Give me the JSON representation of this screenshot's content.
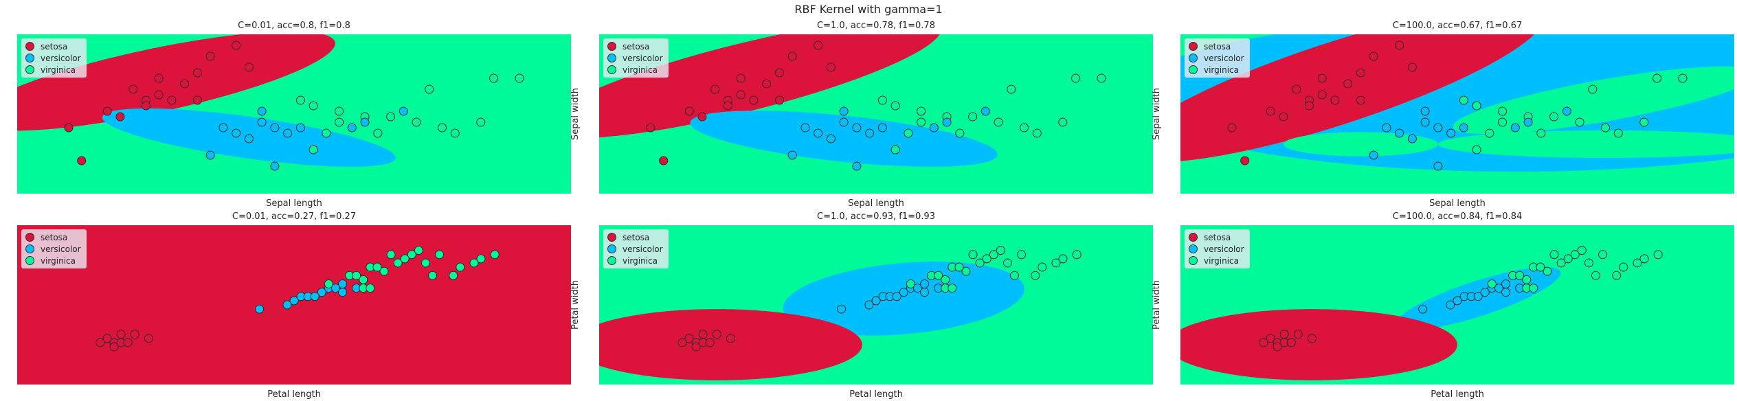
{
  "suptitle": "RBF Kernel with gamma=1",
  "colors": {
    "setosa": "#dc143c",
    "versicolor": "#00bfff",
    "virginica": "#00fa9a"
  },
  "legend": [
    "setosa",
    "versicolor",
    "virginica"
  ],
  "chart_data": [
    {
      "type": "scatter",
      "title": "C=0.01, acc=0.8, f1=0.8",
      "xlabel": "Sepal length",
      "ylabel": "Sepal width",
      "xlim": [
        4.0,
        8.3
      ],
      "ylim": [
        1.7,
        4.6
      ],
      "grid": false,
      "legend": "top-left",
      "regions": [
        {
          "class": "setosa",
          "cx": 5.05,
          "cy": 3.75,
          "rx": 1.45,
          "ry": 0.58,
          "rot": -12
        },
        {
          "class": "versicolor",
          "cx": 5.8,
          "cy": 2.72,
          "rx": 1.15,
          "ry": 0.38,
          "rot": 8
        }
      ],
      "points": {
        "x": [
          4.5,
          4.8,
          4.9,
          5.0,
          5.1,
          5.2,
          5.3,
          5.4,
          5.5,
          5.6,
          5.7,
          5.8,
          5.9,
          6.0,
          6.1,
          6.2,
          6.3,
          6.4,
          6.5,
          6.6,
          6.7,
          6.8,
          6.9,
          7.0,
          7.1,
          7.2,
          7.7,
          7.9,
          4.4,
          4.7,
          5.0,
          5.1,
          5.4,
          5.7,
          5.8,
          6.0,
          6.3,
          6.7,
          5.5,
          5.9,
          6.2,
          6.5,
          7.6,
          7.4,
          7.3
        ],
        "y": [
          2.3,
          3.1,
          3.6,
          3.4,
          3.5,
          3.4,
          3.7,
          3.9,
          4.2,
          2.9,
          2.8,
          2.7,
          3.0,
          2.2,
          2.8,
          2.9,
          3.3,
          2.8,
          3.0,
          2.9,
          3.1,
          2.8,
          3.1,
          3.2,
          3.0,
          3.6,
          3.8,
          3.8,
          2.9,
          3.2,
          3.3,
          3.8,
          3.4,
          4.4,
          4.0,
          2.9,
          2.5,
          3.0,
          2.4,
          3.2,
          3.4,
          3.2,
          3.0,
          2.8,
          2.9
        ],
        "cls": [
          0,
          0,
          0,
          0,
          0,
          0,
          0,
          0,
          0,
          1,
          1,
          1,
          1,
          1,
          1,
          1,
          2,
          2,
          2,
          1,
          2,
          2,
          2,
          1,
          2,
          2,
          2,
          2,
          0,
          0,
          0,
          0,
          0,
          0,
          0,
          1,
          2,
          1,
          1,
          1,
          2,
          2,
          2,
          2,
          2
        ]
      }
    },
    {
      "type": "scatter",
      "title": "C=1.0, acc=0.78, f1=0.78",
      "xlabel": "Sepal length",
      "ylabel": "Sepal width",
      "xlim": [
        4.0,
        8.3
      ],
      "ylim": [
        1.7,
        4.6
      ],
      "grid": false,
      "legend": "top-left",
      "regions": [
        {
          "class": "setosa",
          "cx": 5.1,
          "cy": 3.8,
          "rx": 1.6,
          "ry": 0.62,
          "rot": -14
        },
        {
          "class": "versicolor",
          "cx": 5.9,
          "cy": 2.7,
          "rx": 1.2,
          "ry": 0.42,
          "rot": 6
        }
      ],
      "points": {
        "x": [
          4.5,
          4.8,
          4.9,
          5.0,
          5.1,
          5.2,
          5.3,
          5.4,
          5.5,
          5.6,
          5.7,
          5.8,
          5.9,
          6.0,
          6.1,
          6.2,
          6.3,
          6.4,
          6.5,
          6.6,
          6.7,
          6.8,
          6.9,
          7.0,
          7.1,
          7.2,
          7.7,
          7.9,
          4.4,
          4.7,
          5.0,
          5.1,
          5.4,
          5.7,
          5.8,
          6.0,
          6.3,
          6.7,
          5.5,
          5.9,
          6.2,
          6.5,
          7.6,
          7.4,
          7.3
        ],
        "y": [
          2.3,
          3.1,
          3.6,
          3.4,
          3.5,
          3.4,
          3.7,
          3.9,
          4.2,
          2.9,
          2.8,
          2.7,
          3.0,
          2.2,
          2.8,
          2.9,
          3.3,
          2.8,
          3.0,
          2.9,
          3.1,
          2.8,
          3.1,
          3.2,
          3.0,
          3.6,
          3.8,
          3.8,
          2.9,
          3.2,
          3.3,
          3.8,
          3.4,
          4.4,
          4.0,
          2.9,
          2.5,
          3.0,
          2.4,
          3.2,
          3.4,
          3.2,
          3.0,
          2.8,
          2.9
        ],
        "cls": [
          0,
          0,
          0,
          0,
          0,
          0,
          0,
          0,
          0,
          1,
          1,
          1,
          1,
          1,
          1,
          1,
          2,
          2,
          2,
          1,
          2,
          2,
          2,
          1,
          2,
          2,
          2,
          2,
          0,
          0,
          0,
          0,
          0,
          0,
          0,
          1,
          2,
          1,
          1,
          1,
          2,
          2,
          2,
          2,
          2
        ]
      }
    },
    {
      "type": "scatter",
      "title": "C=100.0, acc=0.67, f1=0.67",
      "xlabel": "Sepal length",
      "ylabel": "Sepal width",
      "xlim": [
        4.0,
        8.3
      ],
      "ylim": [
        1.7,
        4.6
      ],
      "grid": false,
      "legend": "top-left",
      "regions": [
        {
          "class": "versicolor",
          "cx": 6.6,
          "cy": 3.5,
          "rx": 3.0,
          "ry": 1.4,
          "rot": 0
        },
        {
          "class": "setosa",
          "cx": 5.2,
          "cy": 3.7,
          "rx": 1.7,
          "ry": 0.75,
          "rot": -18
        },
        {
          "class": "virginica",
          "cx": 7.3,
          "cy": 3.4,
          "rx": 1.2,
          "ry": 0.38,
          "rot": -10
        },
        {
          "class": "virginica",
          "cx": 7.3,
          "cy": 2.6,
          "rx": 1.3,
          "ry": 0.25,
          "rot": 0
        },
        {
          "class": "virginica",
          "cx": 5.4,
          "cy": 2.6,
          "rx": 0.6,
          "ry": 0.22,
          "rot": 0
        }
      ],
      "points": {
        "x": [
          4.5,
          4.8,
          4.9,
          5.0,
          5.1,
          5.2,
          5.3,
          5.4,
          5.5,
          5.6,
          5.7,
          5.8,
          5.9,
          6.0,
          6.1,
          6.2,
          6.3,
          6.4,
          6.5,
          6.6,
          6.7,
          6.8,
          6.9,
          7.0,
          7.1,
          7.2,
          7.7,
          7.9,
          4.4,
          4.7,
          5.0,
          5.1,
          5.4,
          5.7,
          5.8,
          6.0,
          6.3,
          6.7,
          5.5,
          5.9,
          6.2,
          6.5,
          7.6,
          7.4,
          7.3
        ],
        "y": [
          2.3,
          3.1,
          3.6,
          3.4,
          3.5,
          3.4,
          3.7,
          3.9,
          4.2,
          2.9,
          2.8,
          2.7,
          3.0,
          2.2,
          2.8,
          2.9,
          3.3,
          2.8,
          3.0,
          2.9,
          3.1,
          2.8,
          3.1,
          3.2,
          3.0,
          3.6,
          3.8,
          3.8,
          2.9,
          3.2,
          3.3,
          3.8,
          3.4,
          4.4,
          4.0,
          2.9,
          2.5,
          3.0,
          2.4,
          3.2,
          3.4,
          3.2,
          3.0,
          2.8,
          2.9
        ],
        "cls": [
          0,
          0,
          0,
          0,
          0,
          0,
          0,
          0,
          0,
          1,
          1,
          1,
          1,
          1,
          1,
          1,
          2,
          2,
          2,
          1,
          2,
          2,
          2,
          1,
          2,
          2,
          2,
          2,
          0,
          0,
          0,
          0,
          0,
          0,
          0,
          1,
          2,
          1,
          1,
          1,
          2,
          2,
          2,
          2,
          2
        ]
      }
    },
    {
      "type": "scatter",
      "title": "C=0.01, acc=0.27, f1=0.27",
      "xlabel": "Petal length",
      "ylabel": "Petal width",
      "xlim": [
        0.0,
        8.0
      ],
      "ylim": [
        -0.8,
        3.0
      ],
      "grid": false,
      "legend": "top-left",
      "regions": [],
      "points": {
        "x": [
          1.4,
          1.5,
          1.3,
          1.6,
          1.7,
          1.2,
          1.9,
          1.4,
          1.5,
          1.6,
          3.5,
          3.9,
          4.0,
          4.1,
          4.2,
          4.4,
          4.5,
          4.6,
          4.7,
          4.8,
          4.9,
          5.0,
          4.3,
          4.0,
          4.5,
          4.7,
          4.9,
          5.1,
          5.3,
          5.5,
          5.7,
          5.9,
          6.1,
          6.3,
          6.6,
          6.9,
          5.0,
          5.2,
          5.6,
          5.8,
          6.0,
          6.4,
          6.7,
          5.1,
          5.4
        ],
        "y": [
          0.2,
          0.2,
          0.3,
          0.2,
          0.4,
          0.2,
          0.3,
          0.1,
          0.4,
          0.2,
          1.0,
          1.1,
          1.2,
          1.3,
          1.3,
          1.4,
          1.5,
          1.5,
          1.4,
          1.8,
          1.5,
          1.7,
          1.3,
          1.2,
          1.6,
          1.6,
          1.8,
          2.0,
          1.9,
          2.1,
          2.3,
          2.1,
          2.3,
          1.8,
          2.1,
          2.3,
          1.5,
          2.0,
          2.2,
          2.4,
          1.8,
          2.0,
          2.2,
          1.5,
          2.3
        ],
        "cls": [
          0,
          0,
          0,
          0,
          0,
          0,
          0,
          0,
          0,
          0,
          1,
          1,
          1,
          1,
          1,
          1,
          1,
          1,
          1,
          2,
          1,
          2,
          1,
          1,
          2,
          1,
          2,
          2,
          2,
          2,
          2,
          2,
          2,
          2,
          2,
          2,
          2,
          2,
          2,
          2,
          2,
          2,
          2,
          2,
          2
        ]
      }
    },
    {
      "type": "scatter",
      "title": "C=1.0, acc=0.93, f1=0.93",
      "xlabel": "Petal length",
      "ylabel": "Petal width",
      "xlim": [
        0.0,
        8.0
      ],
      "ylim": [
        -0.8,
        3.0
      ],
      "grid": false,
      "legend": "top-left",
      "regions": [
        {
          "class": "versicolor",
          "cx": 4.4,
          "cy": 1.25,
          "rx": 1.75,
          "ry": 0.85,
          "rot": -5
        },
        {
          "class": "setosa",
          "cx": 1.7,
          "cy": 0.15,
          "rx": 2.1,
          "ry": 0.85,
          "rot": 0
        }
      ],
      "points": {
        "x": [
          1.4,
          1.5,
          1.3,
          1.6,
          1.7,
          1.2,
          1.9,
          1.4,
          1.5,
          1.6,
          3.5,
          3.9,
          4.0,
          4.1,
          4.2,
          4.4,
          4.5,
          4.6,
          4.7,
          4.8,
          4.9,
          5.0,
          4.3,
          4.0,
          4.5,
          4.7,
          4.9,
          5.1,
          5.3,
          5.5,
          5.7,
          5.9,
          6.1,
          6.3,
          6.6,
          6.9,
          5.0,
          5.2,
          5.6,
          5.8,
          6.0,
          6.4,
          6.7,
          5.1,
          5.4
        ],
        "y": [
          0.2,
          0.2,
          0.3,
          0.2,
          0.4,
          0.2,
          0.3,
          0.1,
          0.4,
          0.2,
          1.0,
          1.1,
          1.2,
          1.3,
          1.3,
          1.4,
          1.5,
          1.5,
          1.4,
          1.8,
          1.5,
          1.7,
          1.3,
          1.2,
          1.6,
          1.6,
          1.8,
          2.0,
          1.9,
          2.1,
          2.3,
          2.1,
          2.3,
          1.8,
          2.1,
          2.3,
          1.5,
          2.0,
          2.2,
          2.4,
          1.8,
          2.0,
          2.2,
          1.5,
          2.3
        ],
        "cls": [
          0,
          0,
          0,
          0,
          0,
          0,
          0,
          0,
          0,
          0,
          1,
          1,
          1,
          1,
          1,
          1,
          1,
          1,
          1,
          2,
          1,
          2,
          1,
          1,
          2,
          1,
          2,
          2,
          2,
          2,
          2,
          2,
          2,
          2,
          2,
          2,
          2,
          2,
          2,
          2,
          2,
          2,
          2,
          2,
          2
        ]
      }
    },
    {
      "type": "scatter",
      "title": "C=100.0, acc=0.84, f1=0.84",
      "xlabel": "Petal length",
      "ylabel": "Petal width",
      "xlim": [
        0.0,
        8.0
      ],
      "ylim": [
        -0.8,
        3.0
      ],
      "grid": false,
      "legend": "top-left",
      "regions": [
        {
          "class": "versicolor",
          "cx": 4.3,
          "cy": 1.25,
          "rx": 1.25,
          "ry": 0.42,
          "rot": -18
        },
        {
          "class": "setosa",
          "cx": 1.9,
          "cy": 0.15,
          "rx": 2.1,
          "ry": 0.85,
          "rot": 0
        }
      ],
      "points": {
        "x": [
          1.4,
          1.5,
          1.3,
          1.6,
          1.7,
          1.2,
          1.9,
          1.4,
          1.5,
          1.6,
          3.5,
          3.9,
          4.0,
          4.1,
          4.2,
          4.4,
          4.5,
          4.6,
          4.7,
          4.8,
          4.9,
          5.0,
          4.3,
          4.0,
          4.5,
          4.7,
          4.9,
          5.1,
          5.3,
          5.5,
          5.7,
          5.9,
          6.1,
          6.3,
          6.6,
          6.9,
          5.0,
          5.2,
          5.6,
          5.8,
          6.0,
          6.4,
          6.7,
          5.1,
          5.4
        ],
        "y": [
          0.2,
          0.2,
          0.3,
          0.2,
          0.4,
          0.2,
          0.3,
          0.1,
          0.4,
          0.2,
          1.0,
          1.1,
          1.2,
          1.3,
          1.3,
          1.4,
          1.5,
          1.5,
          1.4,
          1.8,
          1.5,
          1.7,
          1.3,
          1.2,
          1.6,
          1.6,
          1.8,
          2.0,
          1.9,
          2.1,
          2.3,
          2.1,
          2.3,
          1.8,
          2.1,
          2.3,
          1.5,
          2.0,
          2.2,
          2.4,
          1.8,
          2.0,
          2.2,
          1.5,
          2.3
        ],
        "cls": [
          0,
          0,
          0,
          0,
          0,
          0,
          0,
          0,
          0,
          0,
          1,
          1,
          1,
          1,
          1,
          1,
          1,
          1,
          1,
          2,
          1,
          2,
          1,
          1,
          2,
          1,
          2,
          2,
          2,
          2,
          2,
          2,
          2,
          2,
          2,
          2,
          2,
          2,
          2,
          2,
          2,
          2,
          2,
          2,
          2
        ]
      }
    }
  ]
}
